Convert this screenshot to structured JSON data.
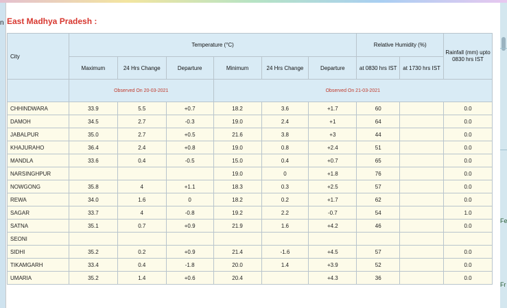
{
  "section": {
    "title": "East Madhya Pradesh :"
  },
  "headers": {
    "city": "City",
    "temperature": "Temperature (°C)",
    "humidity": "Relative Humidity (%)",
    "rainfall": "Rainfall (mm) upto 0830 hrs IST",
    "maximum": "Maximum",
    "change_max": "24 Hrs Change",
    "departure_max": "Departure",
    "minimum": "Minimum",
    "change_min": "24 Hrs Change",
    "departure_min": "Departure",
    "rh_0830": "at 0830 hrs IST",
    "rh_1730": "at 1730 hrs IST"
  },
  "observed": {
    "max": "Observed On 20-03-2021",
    "min": "Observed On 21-03-2021"
  },
  "rows": [
    [
      "CHHINDWARA",
      "33.9",
      "5.5",
      "+0.7",
      "18.2",
      "3.6",
      "+1.7",
      "60",
      "",
      "0.0"
    ],
    [
      "DAMOH",
      "34.5",
      "2.7",
      "-0.3",
      "19.0",
      "2.4",
      "+1",
      "64",
      "",
      "0.0"
    ],
    [
      "JABALPUR",
      "35.0",
      "2.7",
      "+0.5",
      "21.6",
      "3.8",
      "+3",
      "44",
      "",
      "0.0"
    ],
    [
      "KHAJURAHO",
      "36.4",
      "2.4",
      "+0.8",
      "19.0",
      "0.8",
      "+2.4",
      "51",
      "",
      "0.0"
    ],
    [
      "MANDLA",
      "33.6",
      "0.4",
      "-0.5",
      "15.0",
      "0.4",
      "+0.7",
      "65",
      "",
      "0.0"
    ],
    [
      "NARSINGHPUR",
      "",
      "",
      "",
      "19.0",
      "0",
      "+1.8",
      "76",
      "",
      "0.0"
    ],
    [
      "NOWGONG",
      "35.8",
      "4",
      "+1.1",
      "18.3",
      "0.3",
      "+2.5",
      "57",
      "",
      "0.0"
    ],
    [
      "REWA",
      "34.0",
      "1.6",
      "0",
      "18.2",
      "0.2",
      "+1.7",
      "62",
      "",
      "0.0"
    ],
    [
      "SAGAR",
      "33.7",
      "4",
      "-0.8",
      "19.2",
      "2.2",
      "-0.7",
      "54",
      "",
      "1.0"
    ],
    [
      "SATNA",
      "35.1",
      "0.7",
      "+0.9",
      "21.9",
      "1.6",
      "+4.2",
      "46",
      "",
      "0.0"
    ],
    [
      "SEONI",
      "",
      "",
      "",
      "",
      "",
      "",
      "",
      "",
      ""
    ],
    [
      "SIDHI",
      "35.2",
      "0.2",
      "+0.9",
      "21.4",
      "-1.6",
      "+4.5",
      "57",
      "",
      "0.0"
    ],
    [
      "TIKAMGARH",
      "33.4",
      "0.4",
      "-1.8",
      "20.0",
      "1.4",
      "+3.9",
      "52",
      "",
      "0.0"
    ],
    [
      "UMARIA",
      "35.2",
      "1.4",
      "+0.6",
      "20.4",
      "",
      "+4.3",
      "36",
      "",
      "0.0"
    ]
  ],
  "edges": {
    "left": "n",
    "right_1": "Fe",
    "right_2": "Fr"
  },
  "colors": {
    "title": "#d7372f",
    "header_bg": "#d9ebf5",
    "row_bg": "#fdfbe9",
    "observed_text": "#c0392b"
  }
}
